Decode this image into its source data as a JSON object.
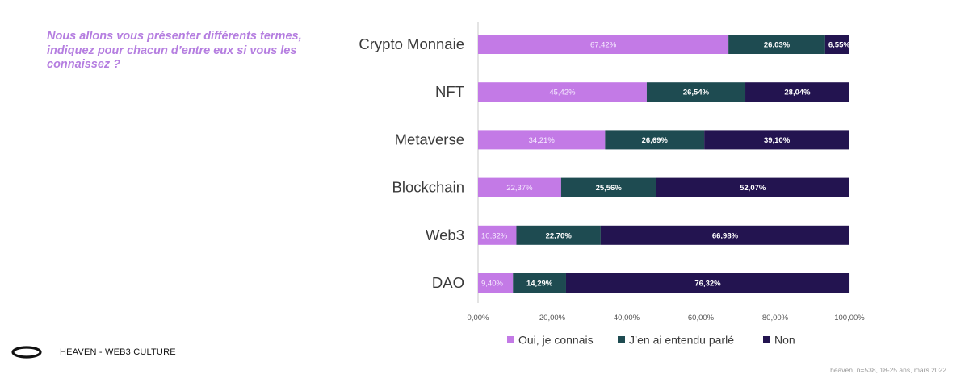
{
  "question": {
    "lines": [
      "Nous allons vous présenter différents termes,",
      "indiquez pour chacun d’entre eux si vous les",
      "connaissez ?"
    ]
  },
  "brand": {
    "name": "HEAVEN - WEB3 CULTURE"
  },
  "source": "heaven, n=538, 18-25 ans, mars 2022",
  "colors": {
    "oui": "#c37ae6",
    "entendu": "#1e4b51",
    "non": "#231450",
    "axis": "#c8c8c8",
    "label": "#3a3a3a",
    "tick": "#555555",
    "question": "#b57ee0"
  },
  "chart_data": {
    "type": "bar",
    "orientation": "horizontal",
    "stacked": true,
    "categories": [
      "Crypto Monnaie",
      "NFT",
      "Metaverse",
      "Blockchain",
      "Web3",
      "DAO"
    ],
    "series": [
      {
        "name": "Oui, je connais",
        "values": [
          67.42,
          45.42,
          34.21,
          22.37,
          10.32,
          9.4
        ],
        "labels": [
          "67,42%",
          "45,42%",
          "34,21%",
          "22,37%",
          "10,32%",
          "9,40%"
        ]
      },
      {
        "name": "J’en ai entendu parlé",
        "values": [
          26.03,
          26.54,
          26.69,
          25.56,
          22.7,
          14.29
        ],
        "labels": [
          "26,03%",
          "26,54%",
          "26,69%",
          "25,56%",
          "22,70%",
          "14,29%"
        ]
      },
      {
        "name": "Non",
        "values": [
          6.55,
          28.04,
          39.1,
          52.07,
          66.98,
          76.32
        ],
        "labels": [
          "6,55%",
          "28,04%",
          "39,10%",
          "52,07%",
          "66,98%",
          "76,32%"
        ]
      }
    ],
    "xlim": [
      0,
      100
    ],
    "xticks": [
      0,
      20,
      40,
      60,
      80,
      100
    ],
    "xtick_labels": [
      "0,00%",
      "20,00%",
      "40,00%",
      "60,00%",
      "80,00%",
      "100,00%"
    ],
    "legend_position": "bottom",
    "title": "",
    "xlabel": "",
    "ylabel": ""
  }
}
